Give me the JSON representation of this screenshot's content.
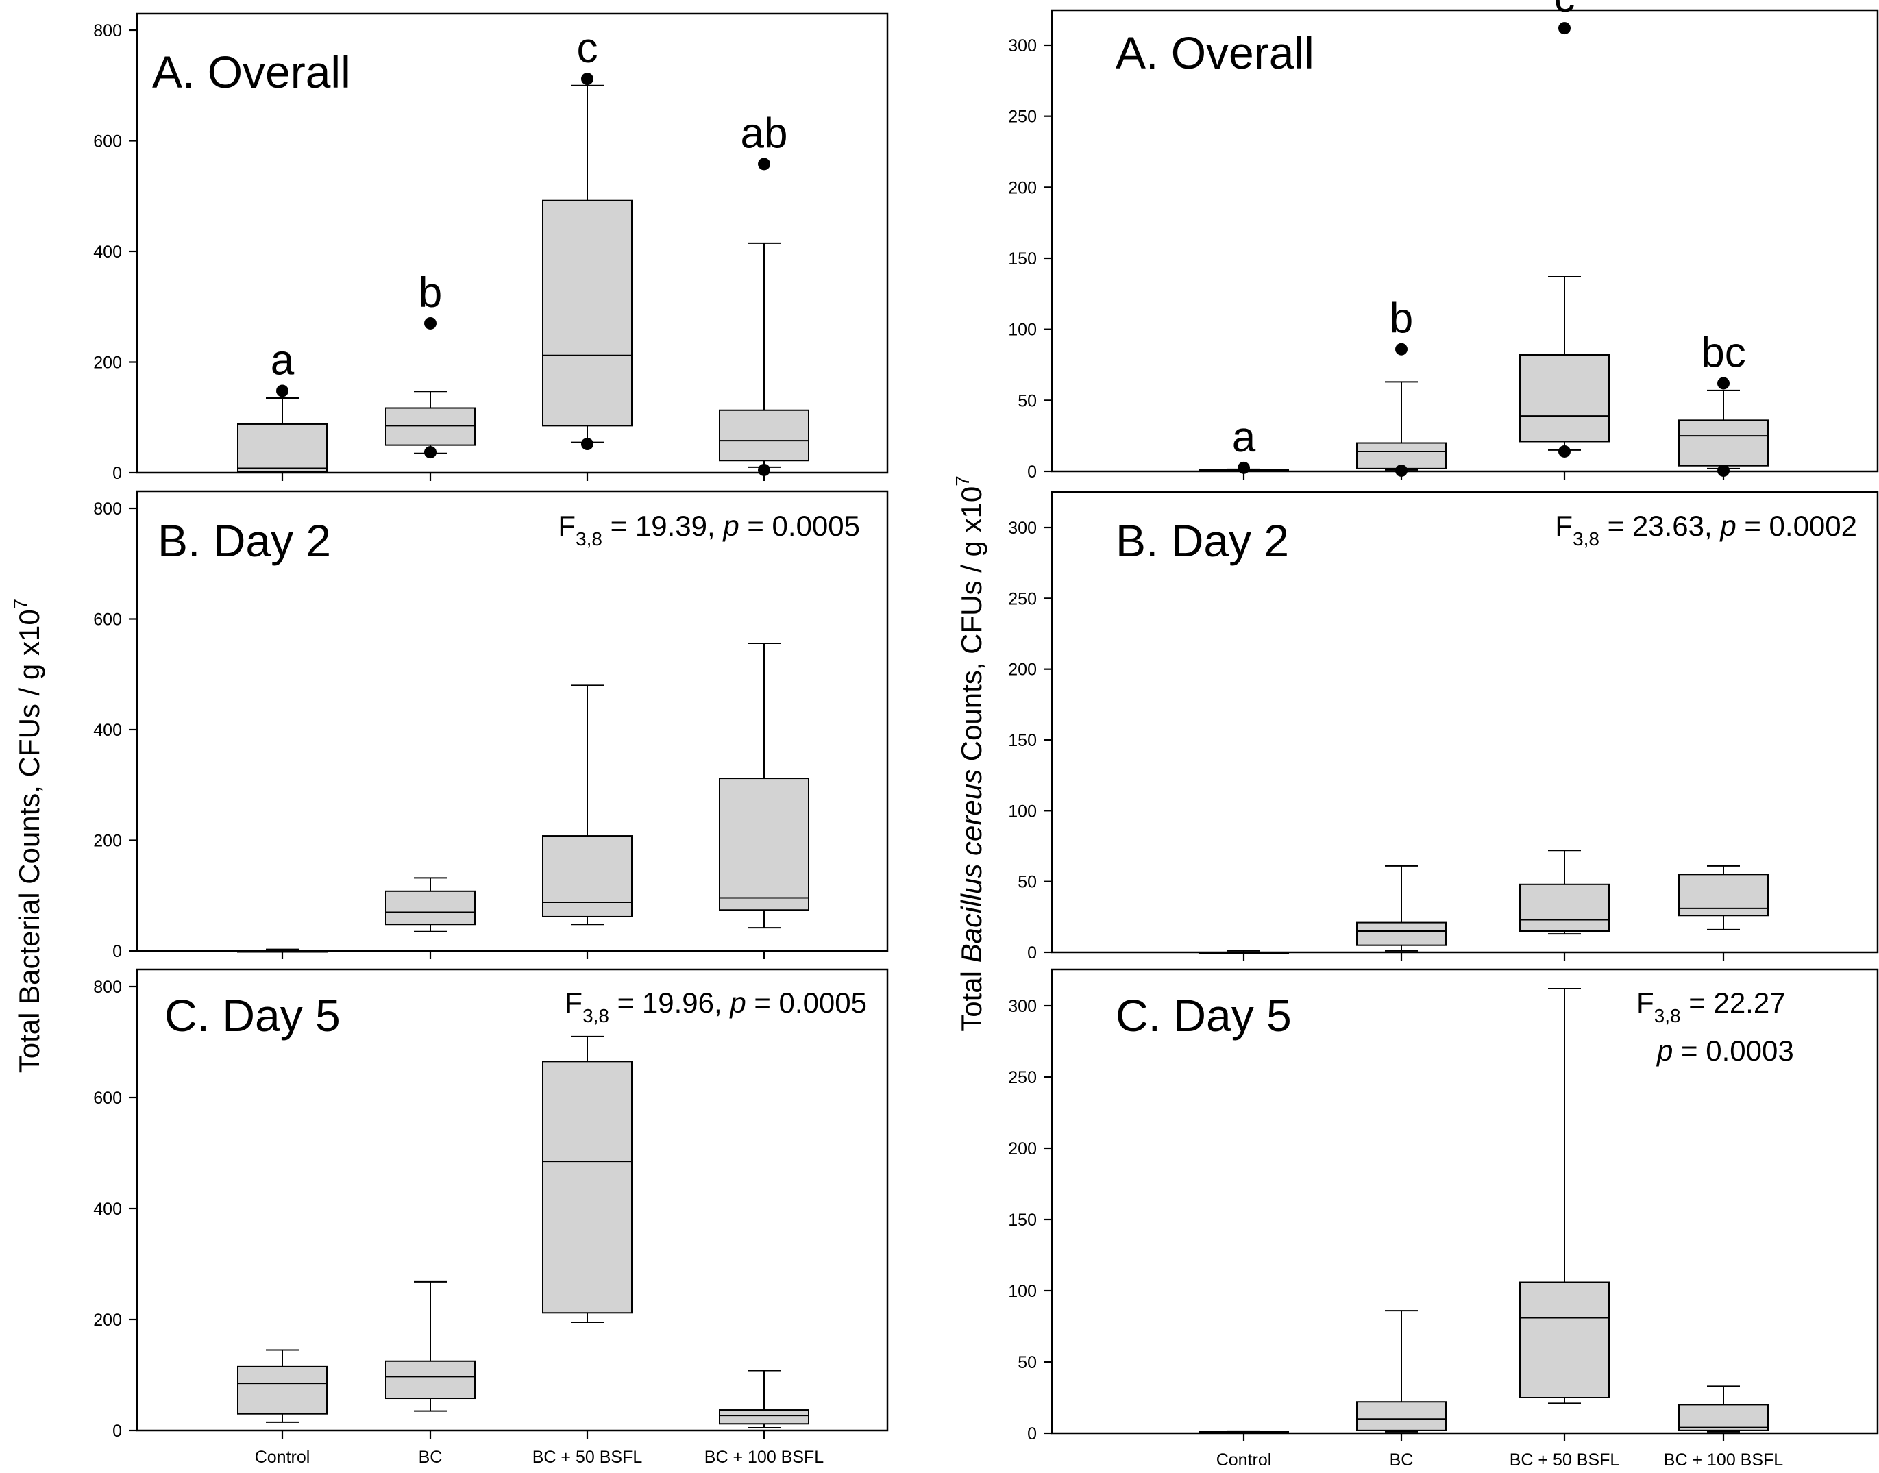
{
  "chart_data": [
    {
      "type": "box",
      "id": "left-overall",
      "title": "A. Overall",
      "ylabel": "Total Bacterial Counts, CFUs / g x10",
      "ylabel_sup": "7",
      "yticks": [
        "0",
        "200",
        "400",
        "600",
        "800"
      ],
      "ylim": [
        0,
        800
      ],
      "categories": [
        "Control",
        "BC",
        "BC + 50 BSFL",
        "BC + 100 BSFL"
      ],
      "stat": null,
      "boxes": [
        {
          "category": "Control",
          "min": 0,
          "q1": 2,
          "median": 8,
          "q3": 88,
          "max": 135,
          "outliers": [
            148
          ],
          "letter": "a"
        },
        {
          "category": "BC",
          "min": 35,
          "q1": 50,
          "median": 85,
          "q3": 117,
          "max": 147,
          "outliers": [
            270,
            37
          ],
          "letter": "b"
        },
        {
          "category": "BC + 50 BSFL",
          "min": 55,
          "q1": 85,
          "median": 212,
          "q3": 492,
          "max": 700,
          "outliers": [
            712,
            52
          ],
          "letter": "c"
        },
        {
          "category": "BC + 100 BSFL",
          "min": 10,
          "q1": 22,
          "median": 58,
          "q3": 113,
          "max": 415,
          "outliers": [
            558,
            5
          ],
          "letter": "ab"
        }
      ]
    },
    {
      "type": "box",
      "id": "left-day2",
      "title": "B. Day 2",
      "yticks": [
        "0",
        "200",
        "400",
        "600",
        "800"
      ],
      "ylim": [
        0,
        800
      ],
      "categories": [
        "Control",
        "BC",
        "BC + 50 BSFL",
        "BC + 100 BSFL"
      ],
      "stat": {
        "f": "F",
        "df": "3,8",
        "rest": " = 19.39, ",
        "p": "p",
        "pval": " = 0.0005"
      },
      "boxes": [
        {
          "category": "Control",
          "min": 0,
          "q1": 0,
          "median": 0,
          "q3": 0,
          "max": 3,
          "outliers": []
        },
        {
          "category": "BC",
          "min": 35,
          "q1": 48,
          "median": 70,
          "q3": 108,
          "max": 132,
          "outliers": []
        },
        {
          "category": "BC + 50 BSFL",
          "min": 48,
          "q1": 62,
          "median": 88,
          "q3": 208,
          "max": 480,
          "outliers": []
        },
        {
          "category": "BC + 100 BSFL",
          "min": 42,
          "q1": 74,
          "median": 96,
          "q3": 312,
          "max": 556,
          "outliers": []
        }
      ]
    },
    {
      "type": "box",
      "id": "left-day5",
      "title": "C. Day 5",
      "yticks": [
        "0",
        "200",
        "400",
        "600",
        "800"
      ],
      "ylim": [
        0,
        800
      ],
      "categories": [
        "Control",
        "BC",
        "BC + 50 BSFL",
        "BC + 100 BSFL"
      ],
      "stat": {
        "f": "F",
        "df": "3,8",
        "rest": " = 19.96, ",
        "p": "p",
        "pval": " = 0.0005"
      },
      "boxes": [
        {
          "category": "Control",
          "min": 15,
          "q1": 30,
          "median": 85,
          "q3": 115,
          "max": 145,
          "outliers": []
        },
        {
          "category": "BC",
          "min": 35,
          "q1": 58,
          "median": 97,
          "q3": 125,
          "max": 268,
          "outliers": []
        },
        {
          "category": "BC + 50 BSFL",
          "min": 195,
          "q1": 212,
          "median": 485,
          "q3": 665,
          "max": 710,
          "outliers": []
        },
        {
          "category": "BC + 100 BSFL",
          "min": 5,
          "q1": 12,
          "median": 27,
          "q3": 37,
          "max": 108,
          "outliers": []
        }
      ]
    },
    {
      "type": "box",
      "id": "right-overall",
      "title": "A. Overall",
      "ylabel_pre": "Total ",
      "ylabel_italic": "Bacillus cereus",
      "ylabel_post": " Counts, CFUs / g x10",
      "ylabel_sup": "7",
      "yticks": [
        "0",
        "50",
        "100",
        "150",
        "200",
        "250",
        "300"
      ],
      "ylim": [
        0,
        325
      ],
      "categories": [
        "Control",
        "BC",
        "BC + 50 BSFL",
        "BC + 100 BSFL"
      ],
      "stat": null,
      "boxes": [
        {
          "category": "Control",
          "min": 0,
          "q1": 0,
          "median": 0.5,
          "q3": 1,
          "max": 1.5,
          "outliers": [
            2.5
          ],
          "letter": "a"
        },
        {
          "category": "BC",
          "min": 1,
          "q1": 2,
          "median": 14,
          "q3": 20,
          "max": 63,
          "outliers": [
            86,
            0.5
          ],
          "letter": "b"
        },
        {
          "category": "BC + 50 BSFL",
          "min": 15,
          "q1": 21,
          "median": 39,
          "q3": 82,
          "max": 137,
          "outliers": [
            312,
            14
          ],
          "letter": "c"
        },
        {
          "category": "BC + 100 BSFL",
          "min": 2,
          "q1": 4,
          "median": 25,
          "q3": 36,
          "max": 57,
          "outliers": [
            62,
            0.5
          ],
          "letter": "bc"
        }
      ]
    },
    {
      "type": "box",
      "id": "right-day2",
      "title": "B. Day 2",
      "yticks": [
        "0",
        "50",
        "100",
        "150",
        "200",
        "250",
        "300"
      ],
      "ylim": [
        0,
        325
      ],
      "categories": [
        "Control",
        "BC",
        "BC + 50 BSFL",
        "BC + 100 BSFL"
      ],
      "stat": {
        "f": "F",
        "df": "3,8",
        "rest": " = 23.63, ",
        "p": "p",
        "pval": " = 0.0002"
      },
      "boxes": [
        {
          "category": "Control",
          "min": 0,
          "q1": 0,
          "median": 0,
          "q3": 0,
          "max": 1,
          "outliers": []
        },
        {
          "category": "BC",
          "min": 1,
          "q1": 5,
          "median": 15,
          "q3": 21,
          "max": 61,
          "outliers": []
        },
        {
          "category": "BC + 50 BSFL",
          "min": 13,
          "q1": 15,
          "median": 23,
          "q3": 48,
          "max": 72,
          "outliers": []
        },
        {
          "category": "BC + 100 BSFL",
          "min": 16,
          "q1": 26,
          "median": 31,
          "q3": 55,
          "max": 61,
          "outliers": []
        }
      ]
    },
    {
      "type": "box",
      "id": "right-day5",
      "title": "C. Day 5",
      "yticks": [
        "0",
        "50",
        "100",
        "150",
        "200",
        "250",
        "300"
      ],
      "ylim": [
        0,
        325
      ],
      "categories": [
        "Control",
        "BC",
        "BC + 50 BSFL",
        "BC + 100 BSFL"
      ],
      "stat": {
        "f": "F",
        "df": "3,8",
        "rest": " = 22.27",
        "p": "p",
        "pval": " = 0.0003"
      },
      "boxes": [
        {
          "category": "Control",
          "min": 0,
          "q1": 0,
          "median": 0.5,
          "q3": 1,
          "max": 1.5,
          "outliers": []
        },
        {
          "category": "BC",
          "min": 1,
          "q1": 2,
          "median": 10,
          "q3": 22,
          "max": 86,
          "outliers": []
        },
        {
          "category": "BC + 50 BSFL",
          "min": 21,
          "q1": 25,
          "median": 81,
          "q3": 106,
          "max": 312,
          "outliers": []
        },
        {
          "category": "BC + 100 BSFL",
          "min": 1,
          "q1": 2,
          "median": 4,
          "q3": 20,
          "max": 33,
          "outliers": []
        }
      ]
    }
  ]
}
